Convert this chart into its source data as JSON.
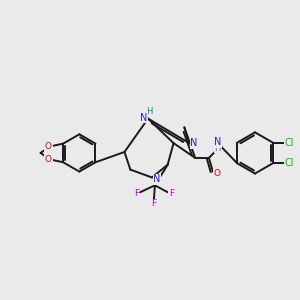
{
  "bg_color": "#EAEAEA",
  "bond_color": "#1a1a1a",
  "bond_width": 1.4,
  "atom_colors": {
    "N": "#2222CC",
    "O": "#CC0000",
    "F": "#CC00CC",
    "Cl": "#22AA22",
    "H": "#008888",
    "C": "#1a1a1a"
  },
  "fig_width": 3.0,
  "fig_height": 3.0,
  "dpi": 100
}
